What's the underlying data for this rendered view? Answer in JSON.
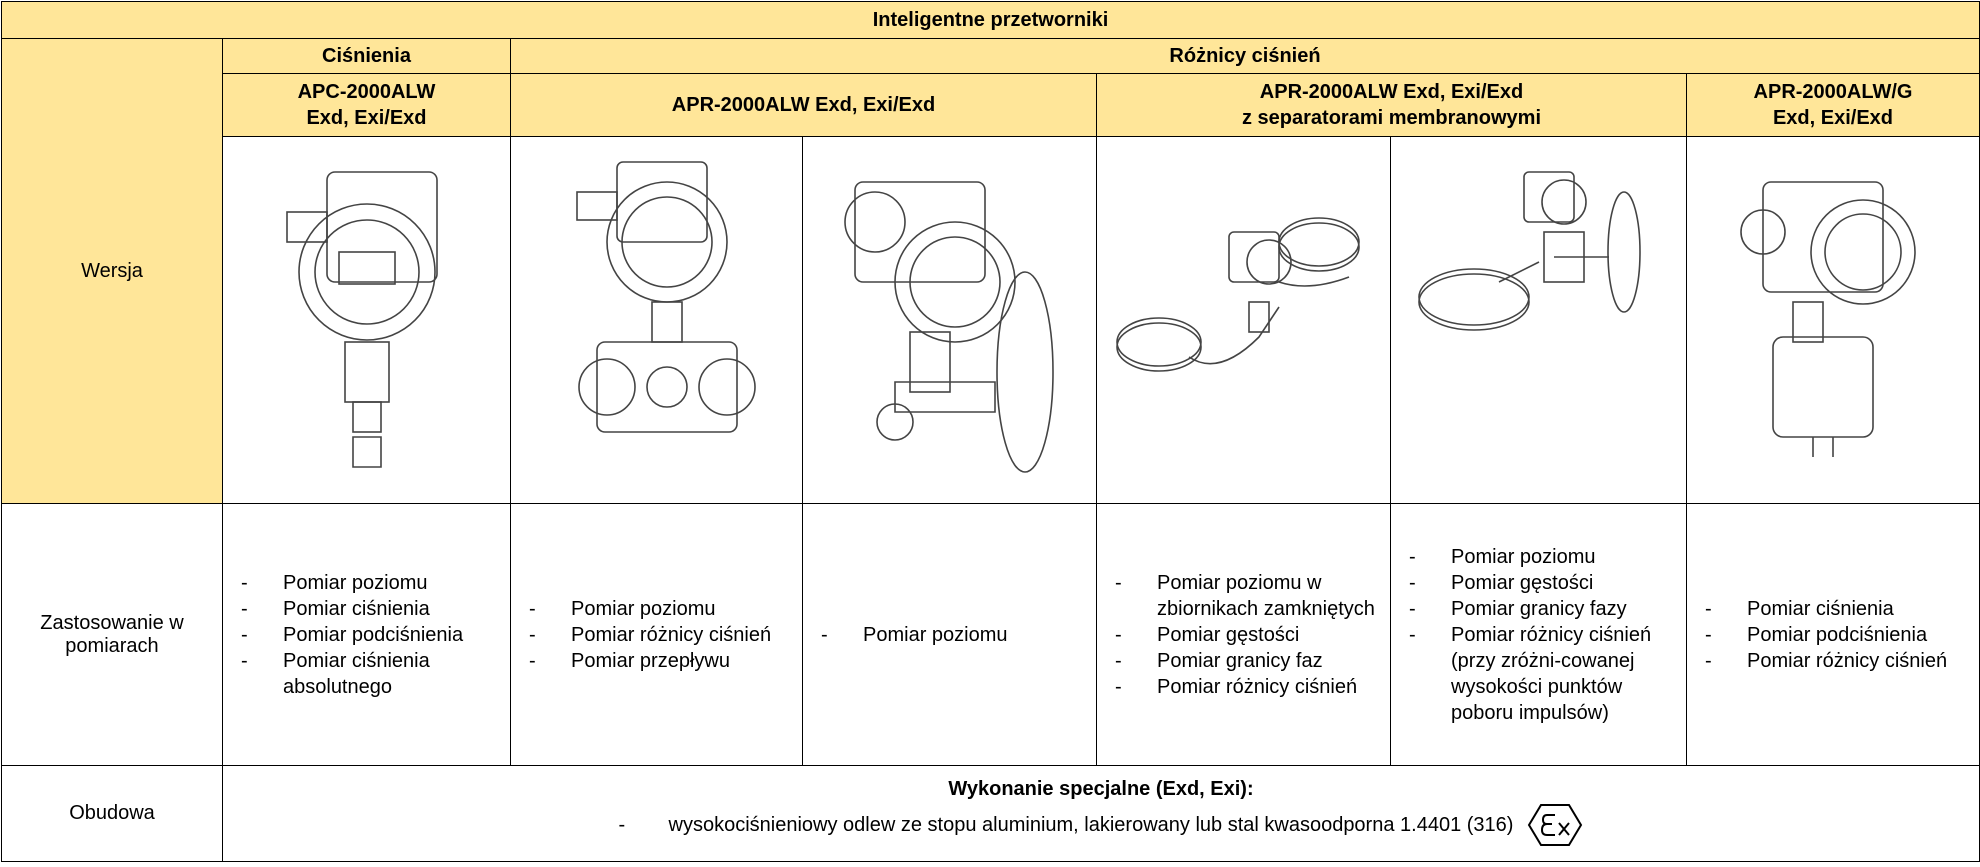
{
  "header": {
    "title": "Inteligentne przetworniki"
  },
  "groups": [
    "Ciśnienia",
    "Różnicy ciśnień"
  ],
  "models": [
    "APC-2000ALW\nExd, Exi/Exd",
    "APR-2000ALW Exd, Exi/Exd",
    "APR-2000ALW Exd, Exi/Exd\nz separatorami membranowymi",
    "APR-2000ALW/G\nExd, Exi/Exd"
  ],
  "row_labels": [
    "Wersja",
    "Zastosowanie w pomiarach",
    "Obudowa"
  ],
  "usage": [
    [
      "Pomiar poziomu",
      "Pomiar ciśnienia",
      "Pomiar podciśnienia",
      "Pomiar ciśnienia absolutnego"
    ],
    [
      "Pomiar poziomu",
      "Pomiar różnicy ciśnień",
      "Pomiar przepływu"
    ],
    [
      "Pomiar poziomu"
    ],
    [
      "Pomiar poziomu w zbiornikach zamkniętych",
      "Pomiar gęstości",
      "Pomiar granicy faz",
      "Pomiar różnicy ciśnień"
    ],
    [
      "Pomiar poziomu",
      "Pomiar gęstości",
      "Pomiar granicy fazy",
      "Pomiar różnicy ciśnień (przy zróżni-cowanej wysokości punktów poboru impulsów)"
    ],
    [
      "Pomiar ciśnienia",
      "Pomiar podciśnienia",
      "Pomiar różnicy ciśnień"
    ]
  ],
  "housing": {
    "heading": "Wykonanie specjalne (Exd, Exi):",
    "items": [
      "wysokociśnieniowy odlew ze stopu aluminium, lakierowany lub stal kwasoodporna 1.4401 (316)"
    ]
  }
}
